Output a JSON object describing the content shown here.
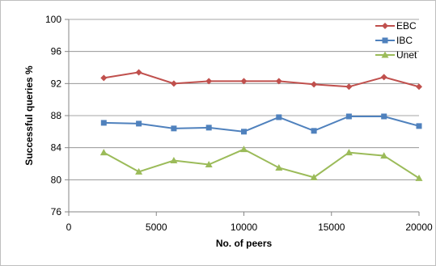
{
  "chart_data": {
    "type": "line",
    "xlabel": "No. of peers",
    "ylabel": "Successful queries %",
    "xlim": [
      0,
      20000
    ],
    "ylim": [
      76,
      100
    ],
    "xticks": [
      0,
      5000,
      10000,
      15000,
      20000
    ],
    "yticks": [
      76,
      80,
      84,
      88,
      92,
      96,
      100
    ],
    "x": [
      2000,
      4000,
      6000,
      8000,
      10000,
      12000,
      14000,
      16000,
      18000,
      20000
    ],
    "grid": "horizontal",
    "legend_position": "top-right",
    "series": [
      {
        "name": "EBC",
        "color": "#c0504d",
        "marker": "diamond",
        "values": [
          92.7,
          93.4,
          92.0,
          92.3,
          92.3,
          92.3,
          91.9,
          91.6,
          92.8,
          91.6
        ]
      },
      {
        "name": "IBC",
        "color": "#4f81bd",
        "marker": "square",
        "values": [
          87.1,
          87.0,
          86.4,
          86.5,
          86.0,
          87.8,
          86.1,
          87.9,
          87.9,
          86.7
        ]
      },
      {
        "name": "Unet",
        "color": "#9bbb59",
        "marker": "triangle",
        "values": [
          83.4,
          81.0,
          82.4,
          81.9,
          83.8,
          81.5,
          80.3,
          83.4,
          83.0,
          80.2
        ]
      }
    ]
  }
}
